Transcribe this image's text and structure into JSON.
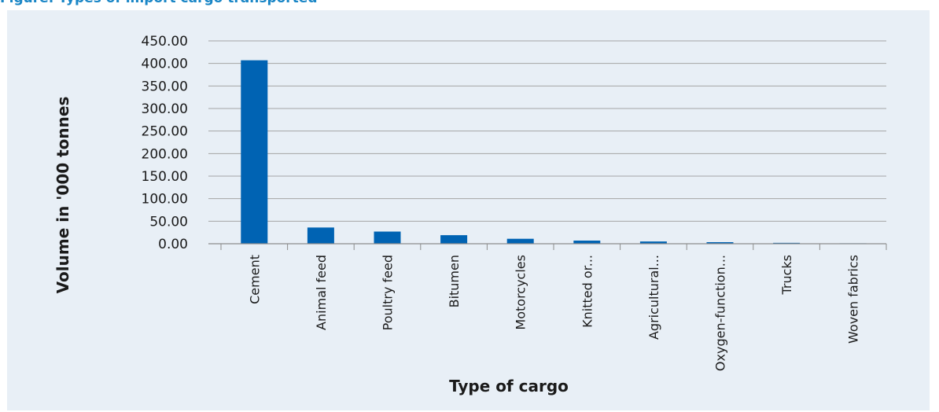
{
  "figure": {
    "caption": "Figure: Types of import cargo transported"
  },
  "colors": {
    "caption": "#1a86c6",
    "panel_background": "#e8eff6",
    "bar": "#0063b3",
    "gridline": "#a5a5a5",
    "axis": "#8c8c8c"
  },
  "chart_data": {
    "type": "bar",
    "title": "",
    "xlabel": "Type of cargo",
    "ylabel": "Volume in '000 tonnes",
    "ylim": [
      0,
      450
    ],
    "yticks": [
      0,
      50,
      100,
      150,
      200,
      250,
      300,
      350,
      400,
      450
    ],
    "ytick_labels": [
      "0.00",
      "50.00",
      "100.00",
      "150.00",
      "200.00",
      "250.00",
      "300.00",
      "350.00",
      "400.00",
      "450.00"
    ],
    "grid": true,
    "legend": "none",
    "categories": [
      "Cement",
      "Animal feed",
      "Poultry feed",
      "Bitumen",
      "Motorcycles",
      "Knitted or...",
      "Agricultural...",
      "Oxygen-function...",
      "Trucks",
      "Woven fabrics"
    ],
    "values": [
      407,
      36,
      27,
      19,
      11,
      7,
      5,
      3.5,
      2,
      1
    ]
  }
}
